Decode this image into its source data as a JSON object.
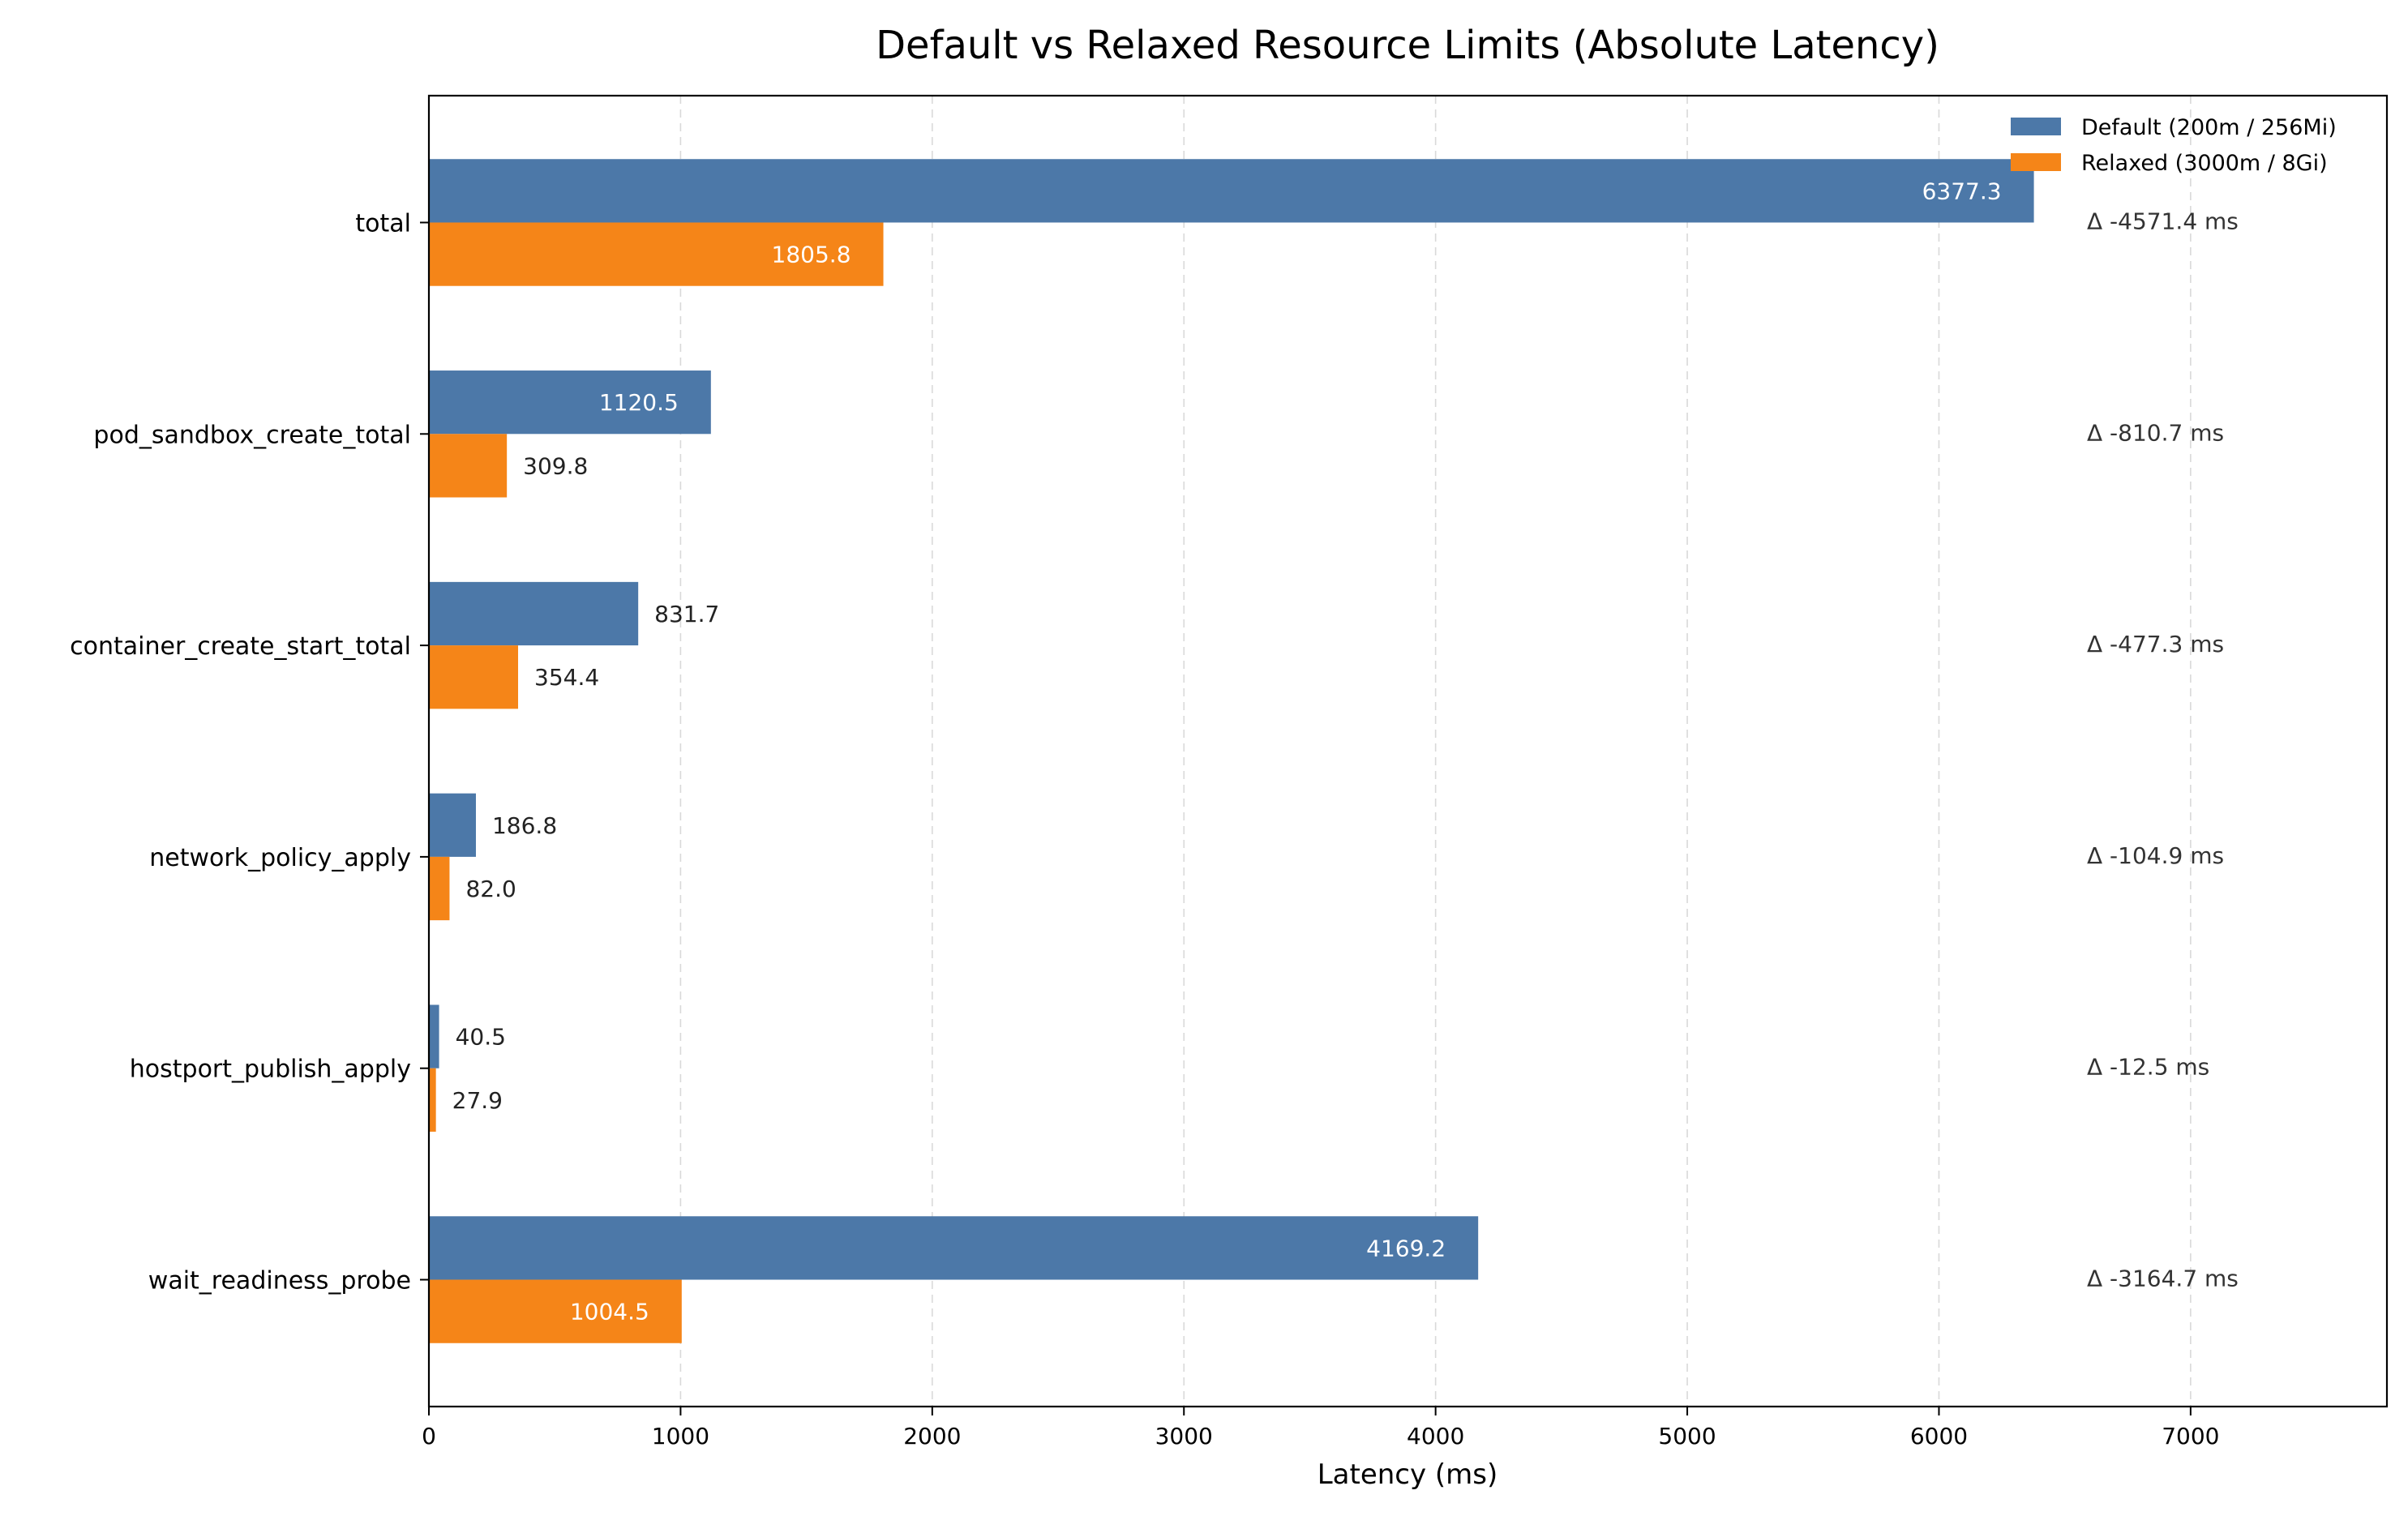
{
  "chart_data": {
    "type": "bar",
    "orientation": "horizontal",
    "title": "Default vs Relaxed Resource Limits (Absolute Latency)",
    "xlabel": "Latency (ms)",
    "ylabel": "",
    "xlim": [
      0,
      7780
    ],
    "xticks": [
      0,
      1000,
      2000,
      3000,
      4000,
      5000,
      6000,
      7000
    ],
    "grid": "vertical dashed",
    "legend_position": "top-right",
    "categories": [
      "total",
      "pod_sandbox_create_total",
      "container_create_start_total",
      "network_policy_apply",
      "hostport_publish_apply",
      "wait_readiness_probe"
    ],
    "series": [
      {
        "name": "Default (200m / 256Mi)",
        "color": "#4c78a8",
        "values": [
          6377.3,
          1120.5,
          831.7,
          186.8,
          40.5,
          4169.2
        ],
        "labels": [
          "6377.3",
          "1120.5",
          "831.7",
          "186.8",
          "40.5",
          "4169.2"
        ]
      },
      {
        "name": "Relaxed (3000m / 8Gi)",
        "color": "#f58518",
        "values": [
          1805.8,
          309.8,
          354.4,
          82.0,
          27.9,
          1004.5
        ],
        "labels": [
          "1805.8",
          "309.8",
          "354.4",
          "82.0",
          "27.9",
          "1004.5"
        ]
      }
    ],
    "delta_labels": [
      "Δ -4571.4 ms",
      "Δ -810.7 ms",
      "Δ -477.3 ms",
      "Δ -104.9 ms",
      "Δ -12.5 ms",
      "Δ -3164.7 ms"
    ]
  }
}
